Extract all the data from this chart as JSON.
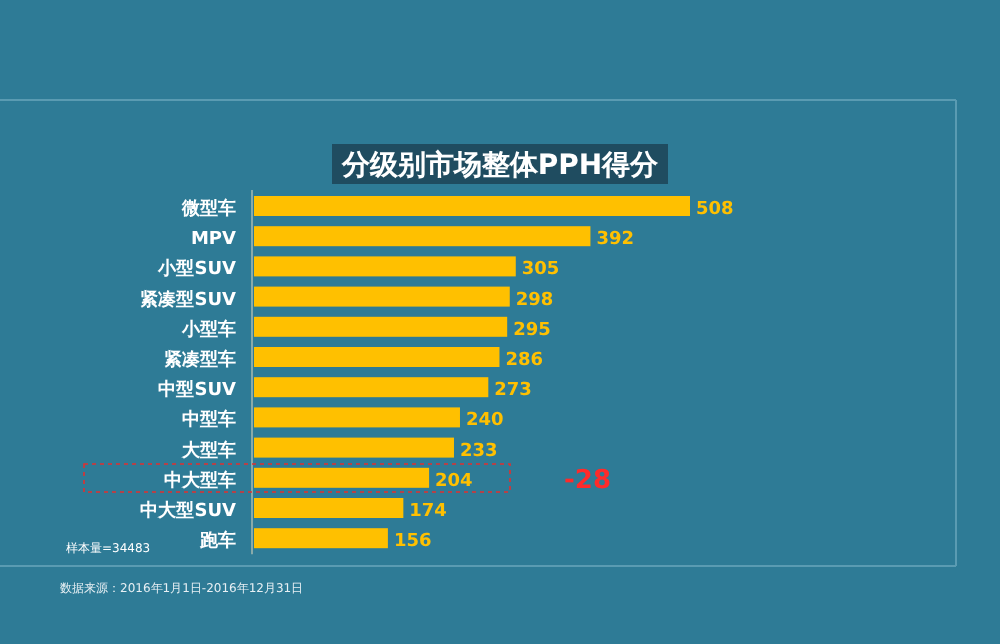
{
  "chart_data": {
    "type": "bar",
    "orientation": "horizontal",
    "title": "分级别市场整体PPH得分",
    "categories": [
      "微型车",
      "MPV",
      "小型SUV",
      "紧凑型SUV",
      "小型车",
      "紧凑型车",
      "中型SUV",
      "中型车",
      "大型车",
      "中大型车",
      "中大型SUV",
      "跑车"
    ],
    "values": [
      508,
      392,
      305,
      298,
      295,
      286,
      273,
      240,
      233,
      204,
      174,
      156
    ],
    "color": "#ffc000",
    "data_labels": true,
    "annotations": [
      "-28",
      "样本量=34483",
      "数据来源：2016年1月1日-2016年12月31日"
    ]
  }
}
